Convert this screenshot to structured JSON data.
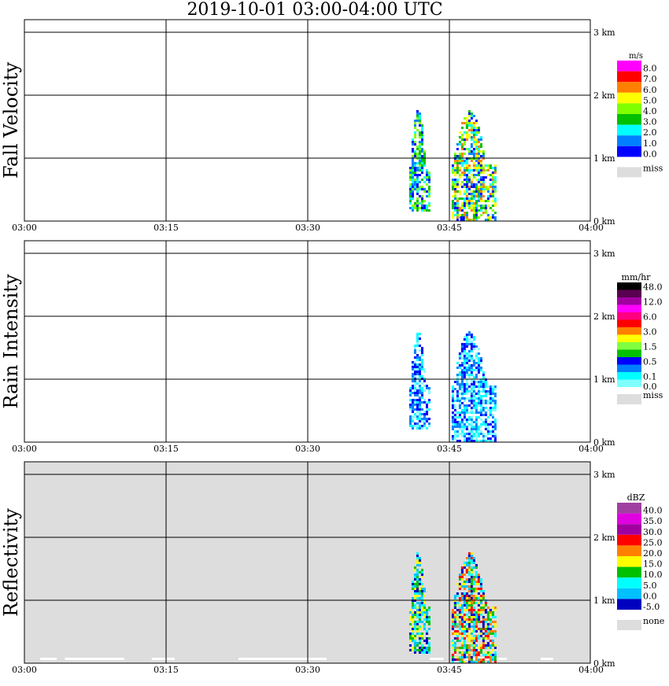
{
  "title": "2019-10-01   03:00-04:00 UTC",
  "chart_data": [
    {
      "type": "heatmap",
      "ylabel": "Fall Velocity",
      "unit": "m/s",
      "bg": "#ffffff",
      "xticks": [
        "03:00",
        "03:15",
        "03:30",
        "03:45",
        "04:00"
      ],
      "xlim_min": [
        0,
        60
      ],
      "yticks": [
        "0 km",
        "1 km",
        "2 km",
        "3 km"
      ],
      "ylim_km": [
        0,
        3.2
      ],
      "legend": {
        "colors": [
          "#ff00ff",
          "#ff0000",
          "#ff8000",
          "#ffff00",
          "#80ff00",
          "#00c000",
          "#00ffff",
          "#0080ff",
          "#0000ff"
        ],
        "labels": [
          "8.0",
          "7.0",
          "6.0",
          "5.0",
          "4.0",
          "3.0",
          "2.0",
          "1.0",
          "0.0"
        ],
        "miss_label": "miss",
        "miss_color": "#dddddd"
      },
      "echoes": [
        {
          "t": [
            40.8,
            43.0
          ],
          "h": [
            0.15,
            1.7
          ],
          "palette": [
            8,
            7,
            6,
            5,
            4
          ]
        },
        {
          "t": [
            45.3,
            50.0
          ],
          "h": [
            0.0,
            1.7
          ],
          "palette": [
            8,
            7,
            6,
            5,
            4,
            3,
            2
          ]
        },
        {
          "t": [
            46.2,
            46.5
          ],
          "h": [
            0.0,
            0.05
          ],
          "palette": [
            8
          ]
        }
      ]
    },
    {
      "type": "heatmap",
      "ylabel": "Rain Intensity",
      "unit": "mm/hr",
      "bg": "#ffffff",
      "xticks": [
        "03:00",
        "03:15",
        "03:30",
        "03:45",
        "04:00"
      ],
      "xlim_min": [
        0,
        60
      ],
      "yticks": [
        "0 km",
        "1 km",
        "2 km",
        "3 km"
      ],
      "ylim_km": [
        0,
        3.2
      ],
      "legend": {
        "colors": [
          "#000000",
          "#5a0050",
          "#a000a0",
          "#ff00ff",
          "#ff0080",
          "#ff0000",
          "#ff8000",
          "#ffff00",
          "#80ff40",
          "#00c000",
          "#0000ff",
          "#0080ff",
          "#00ffff",
          "#80ffff"
        ],
        "labels": [
          "48.0",
          "12.0",
          "6.0",
          "3.0",
          "1.5",
          "0.5",
          "0.1",
          "0.0"
        ],
        "miss_label": "miss",
        "miss_color": "#dddddd"
      },
      "echoes": [
        {
          "t": [
            40.8,
            43.0
          ],
          "h": [
            0.2,
            1.7
          ],
          "palette": [
            13,
            12,
            11,
            10
          ]
        },
        {
          "t": [
            45.3,
            50.0
          ],
          "h": [
            0.0,
            1.7
          ],
          "palette": [
            13,
            12,
            11,
            10
          ]
        }
      ]
    },
    {
      "type": "heatmap",
      "ylabel": "Reflectivity",
      "unit": "dBZ",
      "bg": "#dddddd",
      "xticks": [
        "03:00",
        "03:15",
        "03:30",
        "03:45",
        "04:00"
      ],
      "xlim_min": [
        0,
        60
      ],
      "yticks": [
        "0 km",
        "1 km",
        "2 km",
        "3 km"
      ],
      "ylim_km": [
        0,
        3.2
      ],
      "legend": {
        "colors": [
          "#a040a0",
          "#e000e0",
          "#a000a0",
          "#ff0000",
          "#ff8000",
          "#ffff00",
          "#00c000",
          "#00ffff",
          "#00c0ff",
          "#0000c0"
        ],
        "labels": [
          "40.0",
          "35.0",
          "30.0",
          "25.0",
          "20.0",
          "15.0",
          "10.0",
          "5.0",
          "0.0",
          "-5.0"
        ],
        "miss_label": "none",
        "miss_color": "#dddddd"
      },
      "echoes": [
        {
          "t": [
            40.8,
            43.0
          ],
          "h": [
            0.15,
            1.7
          ],
          "palette": [
            9,
            8,
            7,
            6,
            5
          ]
        },
        {
          "t": [
            45.3,
            50.0
          ],
          "h": [
            0.0,
            1.7
          ],
          "palette": [
            9,
            8,
            7,
            6,
            5,
            4,
            3
          ]
        }
      ]
    }
  ]
}
